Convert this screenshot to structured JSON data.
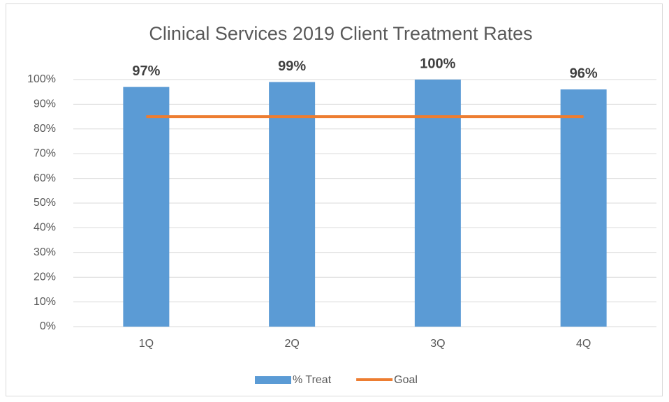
{
  "chart_data": {
    "type": "bar",
    "title": "Clinical Services 2019 Client Treatment Rates",
    "categories": [
      "1Q",
      "2Q",
      "3Q",
      "4Q"
    ],
    "series": [
      {
        "name": "% Treat",
        "type": "bar",
        "color": "#5b9bd5",
        "values": [
          97,
          99,
          100,
          96
        ],
        "value_labels": [
          "97%",
          "99%",
          "100%",
          "96%"
        ]
      },
      {
        "name": "Goal",
        "type": "line",
        "color": "#ed7d31",
        "values": [
          85,
          85,
          85,
          85
        ]
      }
    ],
    "ylim": [
      0,
      100
    ],
    "yticks": [
      {
        "value": 0,
        "label": "0%"
      },
      {
        "value": 10,
        "label": "10%"
      },
      {
        "value": 20,
        "label": "20%"
      },
      {
        "value": 30,
        "label": "30%"
      },
      {
        "value": 40,
        "label": "40%"
      },
      {
        "value": 50,
        "label": "50%"
      },
      {
        "value": 60,
        "label": "60%"
      },
      {
        "value": 70,
        "label": "70%"
      },
      {
        "value": 80,
        "label": "80%"
      },
      {
        "value": 90,
        "label": "90%"
      },
      {
        "value": 100,
        "label": "100%"
      }
    ],
    "grid": true,
    "legend": "bottom"
  }
}
